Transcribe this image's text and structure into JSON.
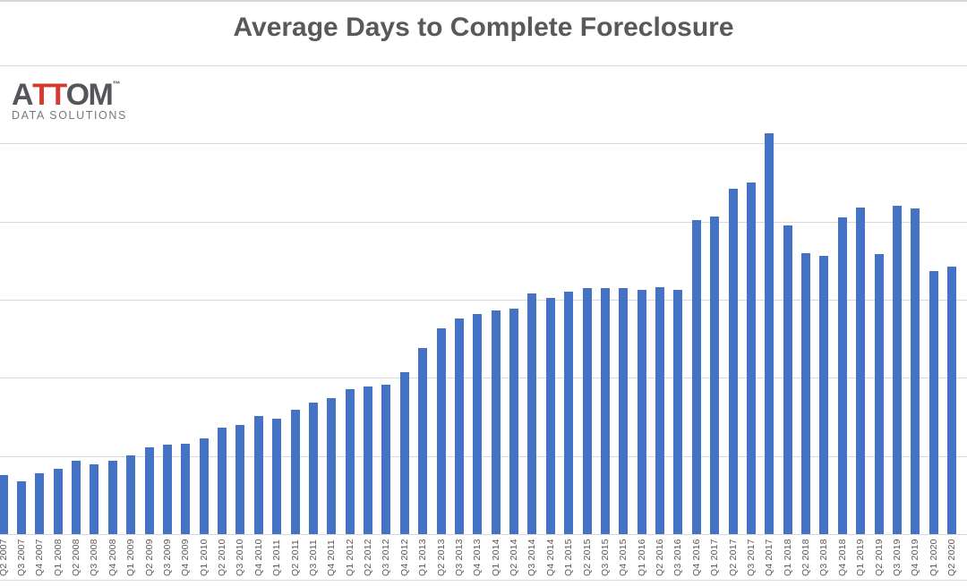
{
  "title": "Average Days to Complete Foreclosure",
  "logo": {
    "word_part_a": "A",
    "word_part_tt": "TT",
    "word_part_om": "OM",
    "trademark": "™",
    "subtitle": "DATA SOLUTIONS"
  },
  "colors": {
    "bar": "#4472C4",
    "gridline": "#D9D9D9",
    "axis_line": "#D9D9D9",
    "bottom_line": "#DBDBDB",
    "top_border": "#D6D6D6",
    "title_text": "#595959",
    "tick_text": "#595959",
    "logo_gray": "#54565A",
    "logo_red": "#D63A2F",
    "logo_subtitle_gray": "#77787B"
  },
  "chart_data": {
    "type": "bar",
    "title": "Average Days to Complete Foreclosure",
    "xlabel": "",
    "ylabel": "",
    "unit": "days",
    "legend": "none",
    "grid": true,
    "ylim": [
      0,
      1200
    ],
    "gridline_interval": 200,
    "y_axis_tick_labels_visible": false,
    "x_tick_label_rotation": 90,
    "categories": [
      "Q2 2007",
      "Q3 2007",
      "Q4 2007",
      "Q1 2008",
      "Q2 2008",
      "Q3 2008",
      "Q4 2008",
      "Q1 2009",
      "Q2 2009",
      "Q3 2009",
      "Q4 2009",
      "Q1 2010",
      "Q2 2010",
      "Q3 2010",
      "Q4 2010",
      "Q1 2011",
      "Q2 2011",
      "Q3 2011",
      "Q4 2011",
      "Q1 2012",
      "Q2 2012",
      "Q3 2012",
      "Q4 2012",
      "Q1 2013",
      "Q2 2013",
      "Q3 2013",
      "Q4 2013",
      "Q1 2014",
      "Q2 2014",
      "Q3 2014",
      "Q4 2014",
      "Q1 2015",
      "Q2 2015",
      "Q3 2015",
      "Q4 2015",
      "Q1 2016",
      "Q2 2016",
      "Q3 2016",
      "Q4 2016",
      "Q1 2017",
      "Q2 2017",
      "Q3 2017",
      "Q4 2017",
      "Q1 2018",
      "Q2 2018",
      "Q3 2018",
      "Q4 2018",
      "Q1 2019",
      "Q2 2019",
      "Q3 2019",
      "Q4 2019",
      "Q1 2020",
      "Q2 2020"
    ],
    "values": [
      151,
      136,
      156,
      168,
      188,
      178,
      188,
      202,
      222,
      230,
      232,
      246,
      273,
      280,
      303,
      295,
      318,
      336,
      348,
      370,
      378,
      382,
      414,
      477,
      526,
      551,
      564,
      572,
      577,
      615,
      604,
      620,
      629,
      630,
      629,
      625,
      631,
      625,
      803,
      814,
      883,
      899,
      1027,
      791,
      720,
      713,
      811,
      835,
      716,
      841,
      834,
      673,
      685
    ]
  }
}
